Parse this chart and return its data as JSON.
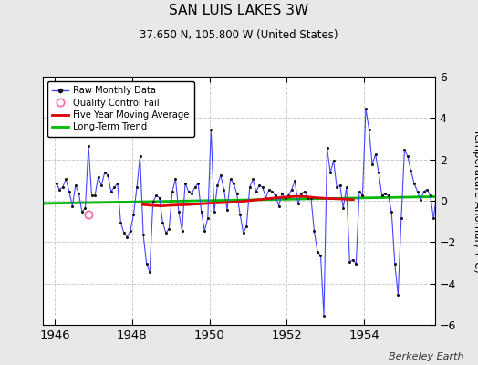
{
  "title": "SAN LUIS LAKES 3W",
  "subtitle": "37.650 N, 105.800 W (United States)",
  "ylabel": "Temperature Anomaly (°C)",
  "watermark": "Berkeley Earth",
  "xlim": [
    1945.7,
    1955.83
  ],
  "ylim": [
    -6,
    6
  ],
  "xticks": [
    1946,
    1948,
    1950,
    1952,
    1954
  ],
  "yticks": [
    -6,
    -4,
    -2,
    0,
    2,
    4,
    6
  ],
  "background_color": "#e8e8e8",
  "plot_bg_color": "#ffffff",
  "raw_color": "#4444ff",
  "ma_color": "#dd0000",
  "trend_color": "#00bb00",
  "qc_color": "#ff66aa",
  "raw_data_x": [
    1946.042,
    1946.125,
    1946.208,
    1946.292,
    1946.375,
    1946.458,
    1946.542,
    1946.625,
    1946.708,
    1946.792,
    1946.875,
    1946.958,
    1947.042,
    1947.125,
    1947.208,
    1947.292,
    1947.375,
    1947.458,
    1947.542,
    1947.625,
    1947.708,
    1947.792,
    1947.875,
    1947.958,
    1948.042,
    1948.125,
    1948.208,
    1948.292,
    1948.375,
    1948.458,
    1948.542,
    1948.625,
    1948.708,
    1948.792,
    1948.875,
    1948.958,
    1949.042,
    1949.125,
    1949.208,
    1949.292,
    1949.375,
    1949.458,
    1949.542,
    1949.625,
    1949.708,
    1949.792,
    1949.875,
    1949.958,
    1950.042,
    1950.125,
    1950.208,
    1950.292,
    1950.375,
    1950.458,
    1950.542,
    1950.625,
    1950.708,
    1950.792,
    1950.875,
    1950.958,
    1951.042,
    1951.125,
    1951.208,
    1951.292,
    1951.375,
    1951.458,
    1951.542,
    1951.625,
    1951.708,
    1951.792,
    1951.875,
    1951.958,
    1952.042,
    1952.125,
    1952.208,
    1952.292,
    1952.375,
    1952.458,
    1952.542,
    1952.625,
    1952.708,
    1952.792,
    1952.875,
    1952.958,
    1953.042,
    1953.125,
    1953.208,
    1953.292,
    1953.375,
    1953.458,
    1953.542,
    1953.625,
    1953.708,
    1953.792,
    1953.875,
    1953.958,
    1954.042,
    1954.125,
    1954.208,
    1954.292,
    1954.375,
    1954.458,
    1954.542,
    1954.625,
    1954.708,
    1954.792,
    1954.875,
    1954.958,
    1955.042,
    1955.125,
    1955.208,
    1955.292,
    1955.375,
    1955.458,
    1955.542,
    1955.625,
    1955.708,
    1955.792,
    1955.875,
    1955.958
  ],
  "raw_data_y": [
    0.85,
    0.55,
    0.65,
    1.05,
    0.45,
    -0.25,
    0.75,
    0.35,
    -0.55,
    -0.35,
    2.65,
    0.25,
    0.25,
    1.15,
    0.75,
    1.35,
    1.25,
    0.45,
    0.65,
    0.85,
    -1.05,
    -1.55,
    -1.75,
    -1.45,
    -0.65,
    0.65,
    2.15,
    -1.65,
    -3.05,
    -3.45,
    -0.05,
    0.25,
    0.15,
    -1.05,
    -1.55,
    -1.35,
    0.45,
    1.05,
    -0.55,
    -1.45,
    0.85,
    0.45,
    0.35,
    0.65,
    0.85,
    -0.55,
    -1.45,
    -0.85,
    3.45,
    -0.55,
    0.75,
    1.25,
    0.55,
    -0.45,
    1.05,
    0.85,
    0.35,
    -0.65,
    -1.55,
    -1.25,
    0.65,
    1.05,
    0.45,
    0.75,
    0.65,
    0.15,
    0.55,
    0.45,
    0.25,
    -0.25,
    0.35,
    0.15,
    0.25,
    0.55,
    0.95,
    -0.15,
    0.35,
    0.45,
    0.15,
    0.15,
    -1.45,
    -2.45,
    -2.65,
    -5.55,
    2.55,
    1.35,
    1.95,
    0.65,
    0.75,
    -0.35,
    0.65,
    -2.95,
    -2.85,
    -3.05,
    0.45,
    0.25,
    4.45,
    3.45,
    1.75,
    2.25,
    1.35,
    0.25,
    0.35,
    0.25,
    -0.55,
    -3.05,
    -4.55,
    -0.85,
    2.45,
    2.15,
    1.45,
    0.85,
    0.45,
    0.05,
    0.45,
    0.55,
    0.25,
    -0.85,
    0.35,
    0.35
  ],
  "qc_fail_x": [
    1946.875
  ],
  "qc_fail_y": [
    -0.65
  ],
  "ma_x": [
    1948.25,
    1948.5,
    1948.75,
    1949.0,
    1949.25,
    1949.5,
    1949.75,
    1950.0,
    1950.25,
    1950.5,
    1950.75,
    1951.0,
    1951.25,
    1951.5,
    1951.75,
    1952.0,
    1952.25,
    1952.5,
    1952.75,
    1953.0,
    1953.25,
    1953.5,
    1953.75
  ],
  "ma_y": [
    -0.18,
    -0.22,
    -0.25,
    -0.22,
    -0.2,
    -0.18,
    -0.15,
    -0.12,
    -0.1,
    -0.08,
    -0.05,
    0.0,
    0.05,
    0.1,
    0.15,
    0.18,
    0.22,
    0.2,
    0.15,
    0.12,
    0.1,
    0.08,
    0.05
  ],
  "trend_x": [
    1945.7,
    1955.83
  ],
  "trend_y": [
    -0.13,
    0.2
  ]
}
